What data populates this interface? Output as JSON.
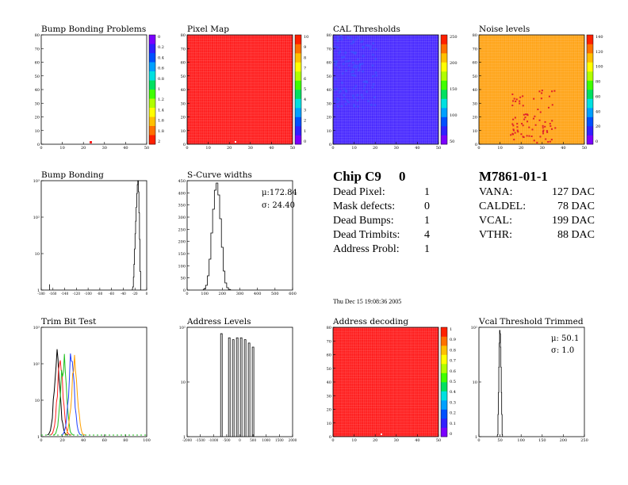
{
  "colors": {
    "hot": "#ff2020",
    "blue": "#4b2cff",
    "orange": "#ffa51a",
    "line": "#000000"
  },
  "panels": {
    "bump_map": {
      "title": "Bump Bonding Problems",
      "xticks": [
        "0",
        "10",
        "20",
        "30",
        "40",
        "50"
      ],
      "yticks": [
        "0",
        "10",
        "20",
        "30",
        "40",
        "50",
        "60",
        "70",
        "80"
      ],
      "zticks": [
        "0",
        "0.2",
        "0.4",
        "0.6",
        "0.8",
        "1",
        "1.2",
        "1.4",
        "1.6",
        "1.8",
        "2"
      ]
    },
    "pixel_map": {
      "title": "Pixel Map",
      "xticks": [
        "0",
        "10",
        "20",
        "30",
        "40",
        "50"
      ],
      "yticks": [
        "0",
        "10",
        "20",
        "30",
        "40",
        "50",
        "60",
        "70",
        "80"
      ],
      "zticks": [
        "10",
        "9",
        "8",
        "7",
        "6",
        "5",
        "4",
        "3",
        "2",
        "1",
        "0"
      ]
    },
    "cal_thresholds": {
      "title": "CAL Thresholds",
      "xticks": [
        "0",
        "10",
        "20",
        "30",
        "40",
        "50"
      ],
      "yticks": [
        "0",
        "10",
        "20",
        "30",
        "40",
        "50",
        "60",
        "70",
        "80"
      ],
      "zticks": [
        "250",
        "200",
        "150",
        "100",
        "50"
      ]
    },
    "noise_levels": {
      "title": "Noise levels",
      "xticks": [
        "0",
        "10",
        "20",
        "30",
        "40",
        "50"
      ],
      "yticks": [
        "0",
        "10",
        "20",
        "30",
        "40",
        "50",
        "60",
        "70",
        "80"
      ],
      "zticks": [
        "140",
        "120",
        "100",
        "80",
        "60",
        "40",
        "20",
        "0"
      ]
    },
    "bump_bonding": {
      "title": "Bump Bonding",
      "xticks": [
        "-180",
        "-160",
        "-140",
        "-120",
        "-100",
        "-80",
        "-60",
        "-40",
        "-20",
        "0"
      ],
      "yticks": [
        "1",
        "10",
        "10²",
        "10³"
      ]
    },
    "scurve": {
      "title": "S-Curve widths",
      "xticks": [
        "0",
        "100",
        "200",
        "300",
        "400",
        "500",
        "600"
      ],
      "yticks": [
        "0",
        "50",
        "100",
        "150",
        "200",
        "250",
        "300",
        "350",
        "400",
        "450"
      ],
      "mu": "μ:172.84",
      "sigma": "σ: 24.40"
    },
    "trim_bit": {
      "title": "Trim Bit Test",
      "xticks": [
        "0",
        "20",
        "40",
        "60",
        "80",
        "100"
      ],
      "yticks": [
        "1",
        "10",
        "10²",
        "10³"
      ]
    },
    "address_levels": {
      "title": "Address Levels",
      "xticks": [
        "-2000",
        "-1500",
        "-1000",
        "-500",
        "0",
        "500",
        "1000",
        "1500",
        "2000"
      ],
      "yticks": [
        "1",
        "10",
        "10²"
      ]
    },
    "address_decoding": {
      "title": "Address decoding",
      "xticks": [
        "0",
        "10",
        "20",
        "30",
        "40",
        "50"
      ],
      "yticks": [
        "0",
        "10",
        "20",
        "30",
        "40",
        "50",
        "60",
        "70",
        "80"
      ],
      "zticks": [
        "1",
        "0.9",
        "0.8",
        "0.7",
        "0.6",
        "0.5",
        "0.4",
        "0.3",
        "0.2",
        "0.1",
        "0"
      ]
    },
    "vcal_trimmed": {
      "title": "Vcal Threshold Trimmed",
      "xticks": [
        "0",
        "50",
        "100",
        "150",
        "200",
        "250"
      ],
      "yticks": [
        "1",
        "10",
        "10²"
      ],
      "mu": "μ: 50.1",
      "sigma": "σ:  1.0"
    }
  },
  "summary": {
    "chip_label": "Chip C9",
    "chip_value": "0",
    "rows": [
      {
        "label": "Dead Pixel:",
        "value": "1"
      },
      {
        "label": "Mask defects:",
        "value": "0"
      },
      {
        "label": "Dead Bumps:",
        "value": "1"
      },
      {
        "label": "Dead Trimbits:",
        "value": "4"
      },
      {
        "label": "Address Probl:",
        "value": "1"
      }
    ],
    "date": "Thu Dec 15 19:08:36 2005"
  },
  "module": {
    "id": "M7861-01-1",
    "rows": [
      {
        "label": "VANA:",
        "value": "127 DAC"
      },
      {
        "label": "CALDEL:",
        "value": "78 DAC"
      },
      {
        "label": "VCAL:",
        "value": "199 DAC"
      },
      {
        "label": "VTHR:",
        "value": "88 DAC"
      }
    ]
  },
  "chart_data": [
    {
      "type": "heatmap",
      "title": "Bump Bonding Problems",
      "x_range": [
        0,
        52
      ],
      "y_range": [
        0,
        80
      ],
      "z_range": [
        0,
        2
      ],
      "defects": [
        {
          "x": 24,
          "y": 1,
          "z": 2
        }
      ]
    },
    {
      "type": "heatmap",
      "title": "Pixel Map",
      "x_range": [
        0,
        52
      ],
      "y_range": [
        0,
        80
      ],
      "z_range": [
        0,
        10
      ],
      "fill_value": 10
    },
    {
      "type": "heatmap",
      "title": "CAL Thresholds",
      "x_range": [
        0,
        52
      ],
      "y_range": [
        0,
        80
      ],
      "z_range": [
        20,
        260
      ],
      "typical_value": 15
    },
    {
      "type": "heatmap",
      "title": "Noise levels",
      "x_range": [
        0,
        52
      ],
      "y_range": [
        0,
        80
      ],
      "z_range": [
        0,
        140
      ],
      "typical_value": 115
    },
    {
      "type": "bar",
      "title": "Bump Bonding",
      "x_range": [
        -185,
        5
      ],
      "log_y": true,
      "x": [
        -20,
        -19,
        -18,
        -17,
        -16,
        -15,
        -14,
        -13,
        -12,
        -11,
        -10,
        -9,
        -8,
        -7
      ],
      "values": [
        1,
        2,
        5,
        15,
        45,
        110,
        300,
        800,
        1500,
        2000,
        900,
        200,
        30,
        3
      ]
    },
    {
      "type": "bar",
      "title": "S-Curve widths",
      "x_range": [
        0,
        600
      ],
      "y_range": [
        0,
        460
      ],
      "x": [
        100,
        110,
        120,
        130,
        140,
        150,
        160,
        170,
        180,
        190,
        200,
        210,
        220,
        230,
        240
      ],
      "values": [
        5,
        20,
        60,
        130,
        240,
        340,
        420,
        450,
        400,
        300,
        180,
        80,
        30,
        10,
        3
      ],
      "annotations": [
        "μ:172.84",
        "σ: 24.40"
      ]
    },
    {
      "type": "line",
      "title": "Trim Bit Test",
      "x_range": [
        0,
        100
      ],
      "log_y": true,
      "series_count": 5
    },
    {
      "type": "bar",
      "title": "Address Levels",
      "x_range": [
        -2000,
        2000
      ],
      "log_y": true,
      "x": [
        -700,
        -400,
        -250,
        -100,
        50,
        200,
        350,
        500
      ],
      "values": [
        250,
        200,
        180,
        200,
        200,
        180,
        150,
        120
      ]
    },
    {
      "type": "heatmap",
      "title": "Address decoding",
      "x_range": [
        0,
        52
      ],
      "y_range": [
        0,
        80
      ],
      "z_range": [
        0,
        1
      ],
      "fill_value": 1
    },
    {
      "type": "bar",
      "title": "Vcal Threshold Trimmed",
      "x_range": [
        0,
        255
      ],
      "log_y": true,
      "x": [
        45,
        46,
        47,
        48,
        49,
        50,
        51,
        52,
        53,
        54,
        55,
        56
      ],
      "values": [
        1,
        3,
        10,
        40,
        150,
        300,
        250,
        120,
        40,
        10,
        3,
        1
      ],
      "annotations": [
        "μ: 50.1",
        "σ:  1.0"
      ]
    }
  ]
}
